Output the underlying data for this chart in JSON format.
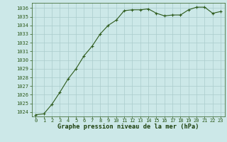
{
  "x": [
    0,
    1,
    2,
    3,
    4,
    5,
    6,
    7,
    8,
    9,
    10,
    11,
    12,
    13,
    14,
    15,
    16,
    17,
    18,
    19,
    20,
    21,
    22,
    23
  ],
  "y": [
    1023.7,
    1023.8,
    1024.9,
    1026.3,
    1027.8,
    1029.0,
    1030.5,
    1031.6,
    1033.0,
    1034.0,
    1034.6,
    1035.7,
    1035.8,
    1035.8,
    1035.9,
    1035.4,
    1035.1,
    1035.2,
    1035.2,
    1035.8,
    1036.1,
    1036.1,
    1035.4,
    1035.6
  ],
  "line_color": "#2d5a1b",
  "marker_color": "#2d5a1b",
  "bg_color": "#cce8e8",
  "grid_color": "#aacccc",
  "xlabel": "Graphe pression niveau de la mer (hPa)",
  "xlabel_color": "#1a3d0a",
  "tick_color": "#2d5a1b",
  "axis_color": "#2d5a1b",
  "ylim": [
    1023.5,
    1036.6
  ],
  "xlim": [
    -0.5,
    23.5
  ],
  "yticks": [
    1024,
    1025,
    1026,
    1027,
    1028,
    1029,
    1030,
    1031,
    1032,
    1033,
    1034,
    1035,
    1036
  ],
  "xticks": [
    0,
    1,
    2,
    3,
    4,
    5,
    6,
    7,
    8,
    9,
    10,
    11,
    12,
    13,
    14,
    15,
    16,
    17,
    18,
    19,
    20,
    21,
    22,
    23
  ],
  "tick_fontsize": 5.0,
  "xlabel_fontsize": 6.2,
  "marker_size": 3.5,
  "linewidth": 0.8
}
